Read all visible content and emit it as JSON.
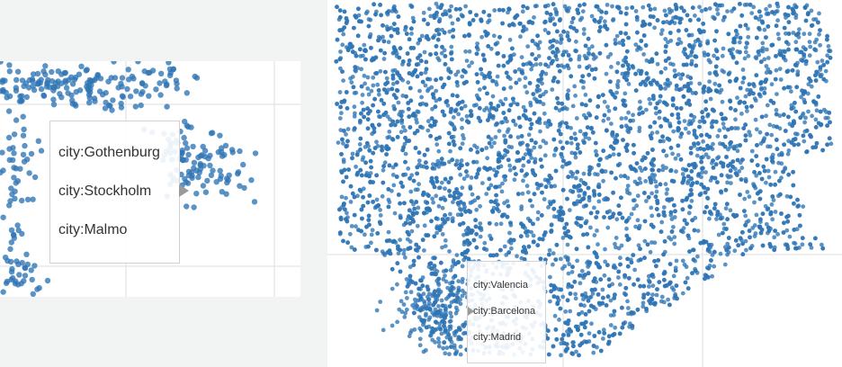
{
  "colors": {
    "point": "#2e74b5",
    "background": "#f2f3f3",
    "panel": "#ffffff",
    "grid": "#dedede",
    "tooltip_border": "#d2d2d2"
  },
  "chart_data": [
    {
      "type": "scatter",
      "title": "",
      "grid": true,
      "legend": "none",
      "tooltip": {
        "items": [
          "city:Gothenburg",
          "city:Stockholm",
          "city:Malmo"
        ]
      }
    },
    {
      "type": "scatter",
      "title": "",
      "grid": true,
      "legend": "none",
      "tooltip": {
        "items": [
          "city:Valencia",
          "city:Barcelona",
          "city:Madrid"
        ]
      }
    }
  ]
}
